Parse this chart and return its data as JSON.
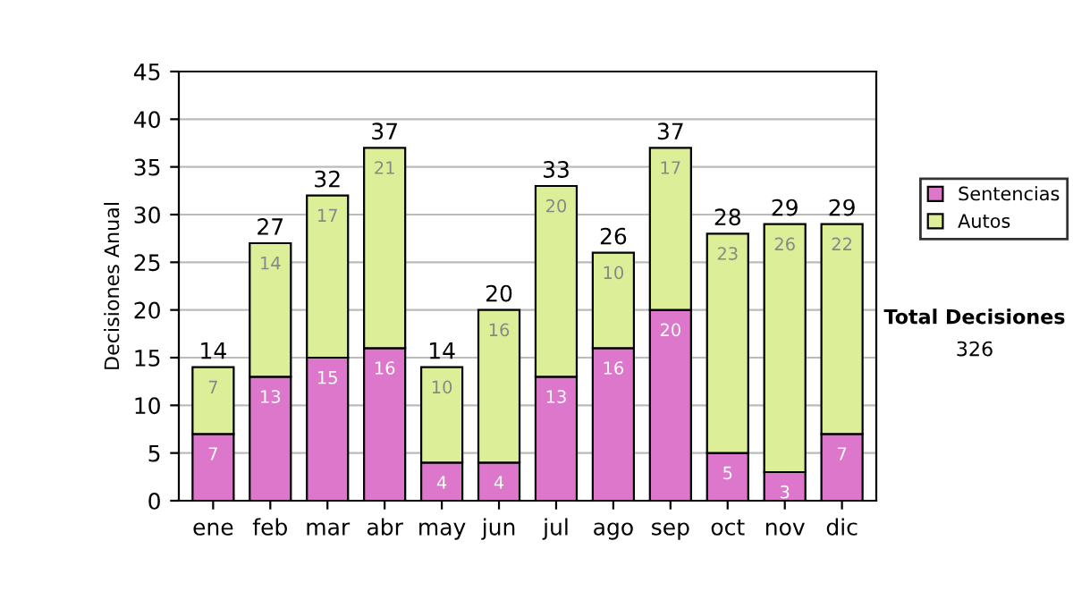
{
  "chart_data": {
    "type": "bar",
    "ylabel": "Decisiones Anual",
    "stacked": true,
    "categories": [
      "ene",
      "feb",
      "mar",
      "abr",
      "may",
      "jun",
      "jul",
      "ago",
      "sep",
      "oct",
      "nov",
      "dic"
    ],
    "series": [
      {
        "name": "Sentencias",
        "color": "#dd77cc",
        "values": [
          7,
          13,
          15,
          16,
          4,
          4,
          13,
          16,
          20,
          5,
          3,
          7
        ]
      },
      {
        "name": "Autos",
        "color": "#ddee99",
        "values": [
          7,
          14,
          17,
          21,
          10,
          16,
          20,
          10,
          17,
          23,
          26,
          22
        ]
      }
    ],
    "totals": [
      "14",
      "27",
      "32",
      "37",
      "14",
      "20",
      "33",
      "26",
      "37",
      "28",
      "29",
      "29"
    ],
    "data_labels": true,
    "ylim": [
      0,
      45
    ],
    "yticks": [
      0,
      5,
      10,
      15,
      20,
      25,
      30,
      35,
      40,
      45
    ],
    "grid": "y",
    "legend": "right",
    "annotations": [
      "Total Decisiones",
      "326"
    ]
  }
}
